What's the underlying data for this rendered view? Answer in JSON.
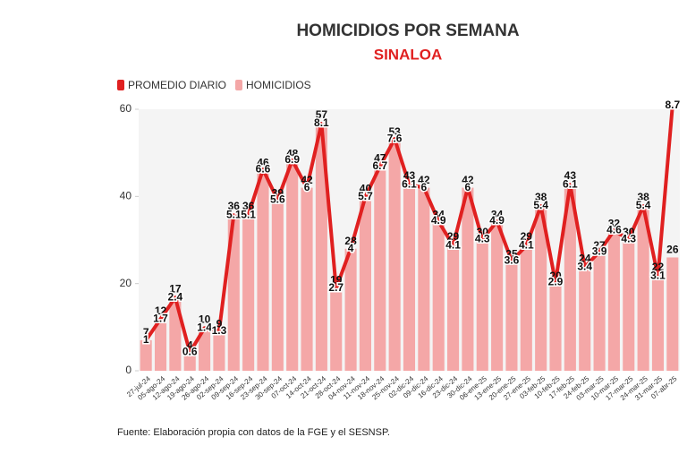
{
  "chart_data": {
    "type": "bar_line",
    "title": "HOMICIDIOS POR SEMANA",
    "subtitle": "SINALOA",
    "source": "Fuente: Elaboración propia con datos de la FGE y el SESNSP.",
    "categories": [
      "27-jul-24",
      "05-ago-24",
      "12-ago-24",
      "19-ago-24",
      "26-ago-24",
      "02-sep-24",
      "09-sep-24",
      "16-sep-24",
      "23-sep-24",
      "30-sep-24",
      "07-oct-24",
      "14-oct-24",
      "21-oct-24",
      "28-oct-24",
      "04-nov-24",
      "11-nov-24",
      "18-nov-24",
      "25-nov-24",
      "02-dic-24",
      "09-dic-24",
      "16-dic-24",
      "23-dic-24",
      "30-dic-24",
      "06-ene-25",
      "13-ene-25",
      "20-ene-25",
      "27-ene-25",
      "03-feb-25",
      "10-feb-25",
      "17-feb-25",
      "24-feb-25",
      "03-mar-25",
      "10-mar-25",
      "17-mar-25",
      "24-mar-25",
      "31-mar-25",
      "07-abr-25"
    ],
    "series": [
      {
        "name": "PROMEDIO DIARIO",
        "type": "line",
        "axis": "y2",
        "color": "#e02020",
        "values": [
          1,
          1.7,
          2.4,
          0.6,
          1.4,
          1.3,
          5.1,
          5.1,
          6.6,
          5.6,
          6.9,
          6,
          8.1,
          2.7,
          4,
          5.7,
          6.7,
          7.6,
          6.1,
          6,
          4.9,
          4.1,
          6,
          4.3,
          4.9,
          3.6,
          4.1,
          5.4,
          2.9,
          6.1,
          3.4,
          3.9,
          4.6,
          4.3,
          5.4,
          3.1,
          8.7
        ]
      },
      {
        "name": "HOMICIDIOS",
        "type": "bar",
        "color": "#f4a7a7",
        "values": [
          7,
          12,
          17,
          4,
          10,
          9,
          36,
          36,
          46,
          39,
          48,
          42,
          57,
          19,
          28,
          40,
          47,
          53,
          43,
          42,
          34,
          29,
          42,
          30,
          34,
          25,
          29,
          38,
          20,
          43,
          24,
          27,
          32,
          30,
          38,
          22,
          26
        ]
      }
    ],
    "ylim": [
      0,
      60
    ],
    "yticks": [
      0,
      20,
      40,
      60
    ],
    "y2lim": [
      0,
      8.5714
    ],
    "legend": "top-left"
  }
}
